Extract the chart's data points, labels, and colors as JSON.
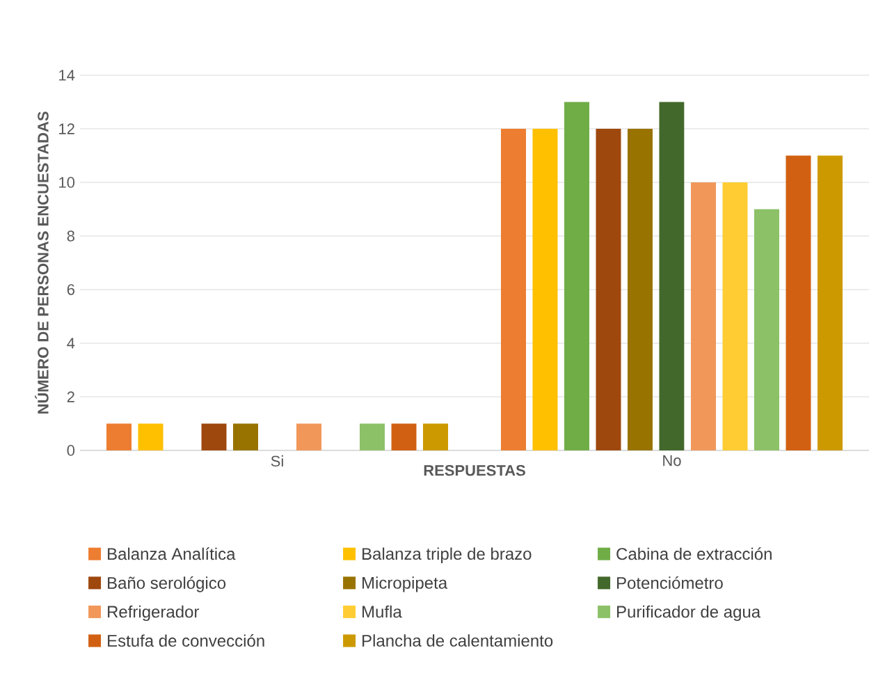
{
  "chart_data": {
    "type": "bar",
    "xlabel": "RESPUESTAS",
    "ylabel": "NÚMERO DE PERSONAS ENCUESTADAS",
    "categories": [
      "Si",
      "No"
    ],
    "series": [
      {
        "name": "Balanza Analítica",
        "color": "#ed7d31",
        "values": [
          1,
          12
        ]
      },
      {
        "name": "Balanza triple de brazo",
        "color": "#ffc000",
        "values": [
          1,
          12
        ]
      },
      {
        "name": "Cabina de extracción",
        "color": "#70ad47",
        "values": [
          0,
          13
        ]
      },
      {
        "name": "Baño serológico",
        "color": "#9e480e",
        "values": [
          1,
          12
        ]
      },
      {
        "name": "Micropipeta",
        "color": "#997300",
        "values": [
          1,
          12
        ]
      },
      {
        "name": "Potenciómetro",
        "color": "#43682b",
        "values": [
          0,
          13
        ]
      },
      {
        "name": "Refrigerador",
        "color": "#f1975a",
        "values": [
          1,
          10
        ]
      },
      {
        "name": "Mufla",
        "color": "#ffcd33",
        "values": [
          0,
          10
        ]
      },
      {
        "name": "Purificador de agua",
        "color": "#8cc168",
        "values": [
          1,
          9
        ]
      },
      {
        "name": "Estufa de convección",
        "color": "#d26012",
        "values": [
          1,
          11
        ]
      },
      {
        "name": "Plancha de calentamiento",
        "color": "#cc9a00",
        "values": [
          1,
          11
        ]
      }
    ],
    "ylim": [
      0,
      14
    ],
    "yticks": [
      0,
      2,
      4,
      6,
      8,
      10,
      12,
      14
    ],
    "grid": "y",
    "legend": "bottom"
  }
}
